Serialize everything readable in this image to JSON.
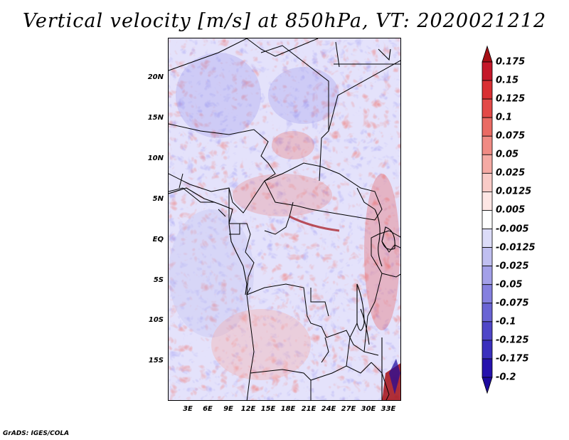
{
  "title": "Vertical velocity [m/s] at 850hPa, VT: 2020021212",
  "credit": "GrADS: IGES/COLA",
  "map": {
    "lat_labels": [
      "20N",
      "15N",
      "10N",
      "5N",
      "EQ",
      "5S",
      "10S",
      "15S"
    ],
    "lon_labels": [
      "3E",
      "6E",
      "9E",
      "12E",
      "15E",
      "18E",
      "21E",
      "24E",
      "27E",
      "30E",
      "33E"
    ]
  },
  "colorbar": {
    "labels": [
      "0.175",
      "0.15",
      "0.125",
      "0.1",
      "0.075",
      "0.05",
      "0.025",
      "0.0125",
      "0.005",
      "-0.005",
      "-0.0125",
      "-0.025",
      "-0.05",
      "-0.075",
      "-0.1",
      "-0.125",
      "-0.175",
      "-0.2"
    ],
    "colors": [
      "#a50f15",
      "#c5182a",
      "#d92f33",
      "#e34a48",
      "#ea6b64",
      "#f08b84",
      "#f5aaa4",
      "#f9cbc7",
      "#fde6e4",
      "#ffffff",
      "#dcdcf8",
      "#c0bff0",
      "#a3a0e8",
      "#8580df",
      "#6a64d4",
      "#4f46c8",
      "#3a2fbd",
      "#2612ad"
    ],
    "top_color": "#a50f15",
    "bottom_color": "#1d0a9e"
  }
}
